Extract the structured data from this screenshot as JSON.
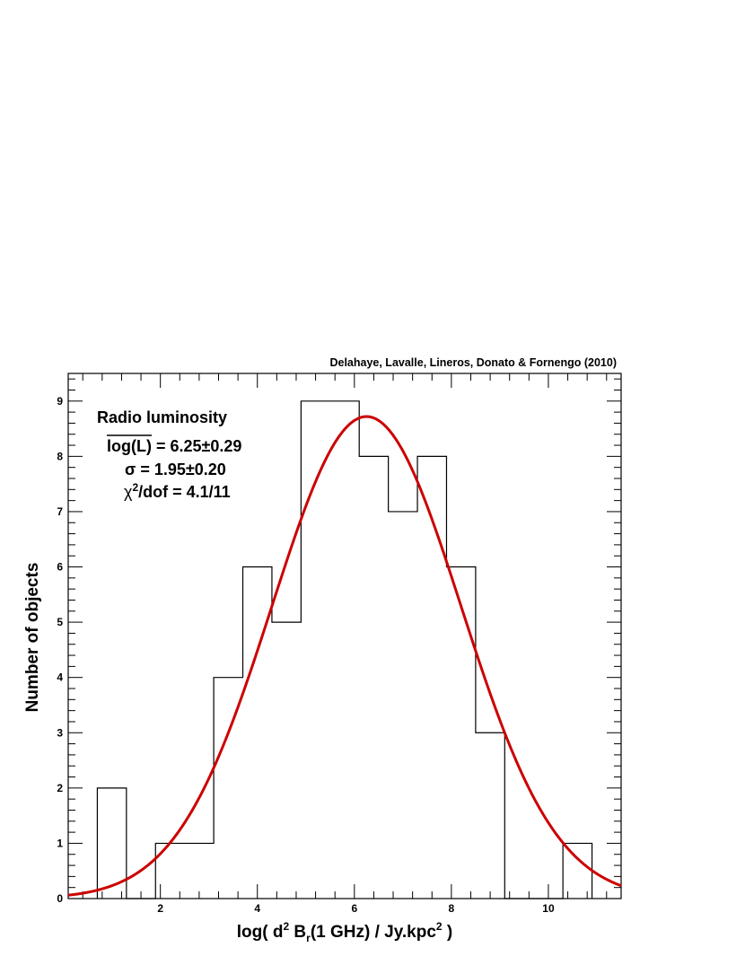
{
  "chart_data": {
    "type": "bar",
    "title": "",
    "credit": "Delahaye, Lavalle, Lineros, Donato & Fornengo (2010)",
    "xlabel": {
      "prefix": "log( d",
      "sup1": "2",
      "mid1": " B",
      "sub1": "r",
      "mid2": "(1 GHz) / Jy.kpc",
      "sup2": "2",
      "suffix": " )"
    },
    "ylabel": "Number of objects",
    "xlim": [
      0.1,
      11.5
    ],
    "ylim": [
      0,
      9.5
    ],
    "x_ticks": [
      2,
      4,
      6,
      8,
      10
    ],
    "y_ticks": [
      0,
      1,
      2,
      3,
      4,
      5,
      6,
      7,
      8,
      9
    ],
    "grid": false,
    "histogram": {
      "bin_edges": [
        0.7,
        1.3,
        1.9,
        2.5,
        3.1,
        3.7,
        4.3,
        4.9,
        5.5,
        6.1,
        6.7,
        7.3,
        7.9,
        8.5,
        9.1,
        9.7,
        10.3,
        10.9
      ],
      "counts": [
        2,
        0,
        1,
        1,
        4,
        6,
        5,
        9,
        9,
        8,
        7,
        8,
        6,
        3,
        0,
        0,
        1
      ],
      "color": "#000000"
    },
    "fit": {
      "model": "gaussian",
      "mean": 6.25,
      "sigma": 1.95,
      "amplitude": 8.72,
      "color": "#cc0000"
    },
    "annotation": {
      "heading": "Radio luminosity",
      "mean_label": "log(L)",
      "mean_value": " = 6.25±0.29",
      "sigma_line": "σ = 1.95±0.20",
      "chi_symbol": "χ",
      "chi_sup": "2",
      "chi_rest": "/dof = 4.1/11"
    }
  }
}
